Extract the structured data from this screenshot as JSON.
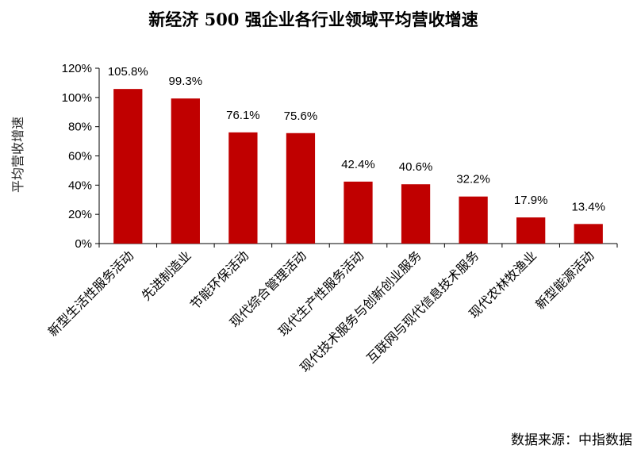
{
  "chart_data": {
    "type": "bar",
    "title": "新经济 500 强企业各行业领域平均营收增速",
    "ylabel": "平均营收增速",
    "xlabel": "",
    "ylim": [
      0,
      120
    ],
    "yticks": [
      0,
      20,
      40,
      60,
      80,
      100,
      120
    ],
    "ytick_format": "{v}%",
    "grid": false,
    "legend": "none",
    "bar_color": "#C00000",
    "categories": [
      "新型生活性服务活动",
      "先进制造业",
      "节能环保活动",
      "现代综合管理活动",
      "现代生产性服务活动",
      "现代技术服务与创新创业服务",
      "互联网与现代信息技术服务",
      "现代农林牧渔业",
      "新型能源活动"
    ],
    "values": [
      105.8,
      99.3,
      76.1,
      75.6,
      42.4,
      40.6,
      32.2,
      17.9,
      13.4
    ],
    "data_labels": [
      "105.8%",
      "99.3%",
      "76.1%",
      "75.6%",
      "42.4%",
      "40.6%",
      "32.2%",
      "17.9%",
      "13.4%"
    ]
  },
  "source": "数据来源：中指数据"
}
